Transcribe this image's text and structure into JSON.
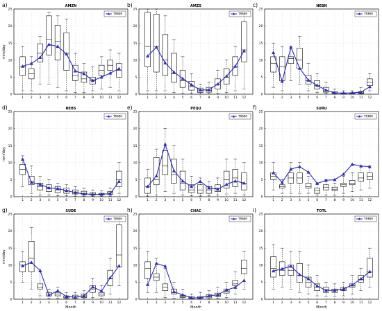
{
  "figure": {
    "x_label": "Month",
    "y_label": "mm/day",
    "legend_entry": "TRMM"
  },
  "colors": {
    "trmm": "#2b2bb8"
  },
  "chart_data": [
    {
      "panel": "a)",
      "title": "AMZN",
      "type": "box+line",
      "x": [
        1,
        2,
        3,
        4,
        5,
        6,
        7,
        8,
        9,
        10,
        11,
        12
      ],
      "ylim": [
        0,
        25
      ],
      "yticks": [
        0,
        5,
        10,
        15,
        20,
        25
      ],
      "trmm": [
        8.2,
        9.0,
        10.8,
        14.6,
        14.0,
        11.8,
        6.8,
        6.0,
        4.0,
        5.0,
        6.2,
        7.5
      ],
      "box": {
        "q1": [
          5.5,
          4.5,
          9.5,
          11.5,
          10.0,
          7.0,
          4.0,
          3.5,
          3.0,
          5.5,
          7.0,
          5.0
        ],
        "median": [
          8.0,
          6.0,
          12.0,
          16.0,
          15.5,
          12.0,
          5.5,
          4.5,
          4.0,
          7.0,
          8.5,
          7.0
        ],
        "q3": [
          11.0,
          7.5,
          14.8,
          23.0,
          20.2,
          18.0,
          8.5,
          6.5,
          5.0,
          8.5,
          10.0,
          9.0
        ],
        "whisker_low": [
          1.0,
          1.0,
          3.0,
          3.0,
          2.0,
          1.0,
          0.5,
          0.5,
          1.0,
          1.5,
          2.0,
          1.0
        ],
        "whisker_high": [
          14.0,
          11.0,
          17.0,
          24.0,
          23.0,
          22.0,
          12.0,
          9.0,
          8.0,
          11.0,
          13.0,
          12.0
        ]
      }
    },
    {
      "panel": "b)",
      "title": "AMZS",
      "type": "box+line",
      "x": [
        1,
        2,
        3,
        4,
        5,
        6,
        7,
        8,
        9,
        10,
        11,
        12
      ],
      "ylim": [
        0,
        25
      ],
      "yticks": [
        0,
        5,
        10,
        15,
        20,
        25
      ],
      "trmm": [
        11.2,
        13.8,
        9.2,
        6.5,
        4.6,
        2.8,
        1.2,
        1.3,
        3.0,
        5.3,
        8.2,
        12.7
      ],
      "box": {
        "q1": [
          8.0,
          6.5,
          5.5,
          3.5,
          2.0,
          1.2,
          0.5,
          0.6,
          1.5,
          3.0,
          5.5,
          9.5
        ],
        "median": [
          14.0,
          14.0,
          10.0,
          6.0,
          4.0,
          2.2,
          1.0,
          1.1,
          2.8,
          5.0,
          8.0,
          13.0
        ],
        "q3": [
          24.0,
          23.5,
          17.5,
          12.0,
          7.0,
          3.8,
          1.8,
          2.0,
          4.5,
          7.5,
          11.0,
          21.2
        ],
        "whisker_low": [
          1.0,
          1.0,
          1.0,
          0.5,
          0.3,
          0.2,
          0.1,
          0.1,
          0.3,
          0.5,
          1.0,
          1.5
        ],
        "whisker_high": [
          25.0,
          25.0,
          23.0,
          16.0,
          11.0,
          6.0,
          3.0,
          3.5,
          7.0,
          10.0,
          14.0,
          24.0
        ]
      }
    },
    {
      "panel": "c)",
      "title": "NEBN",
      "type": "box+line",
      "x": [
        1,
        2,
        3,
        4,
        5,
        6,
        7,
        8,
        9,
        10,
        11,
        12
      ],
      "ylim": [
        0,
        25
      ],
      "yticks": [
        0,
        5,
        10,
        15,
        20,
        25
      ],
      "trmm": [
        12.2,
        3.8,
        13.8,
        7.6,
        4.1,
        2.6,
        1.2,
        0.4,
        0.3,
        0.4,
        0.6,
        2.2
      ],
      "box": {
        "q1": [
          6.5,
          4.0,
          9.0,
          7.5,
          3.0,
          1.5,
          0.6,
          0.2,
          0.1,
          0.1,
          0.2,
          2.5
        ],
        "median": [
          9.0,
          8.0,
          10.5,
          10.0,
          4.0,
          2.5,
          1.0,
          0.4,
          0.2,
          0.2,
          0.4,
          3.5
        ],
        "q3": [
          11.0,
          11.0,
          11.0,
          13.5,
          5.5,
          4.0,
          2.0,
          0.7,
          0.4,
          0.4,
          0.8,
          4.5
        ],
        "whisker_low": [
          2.0,
          1.0,
          4.0,
          3.0,
          1.0,
          0.5,
          0.2,
          0.0,
          0.0,
          0.0,
          0.0,
          1.0
        ],
        "whisker_high": [
          15.0,
          14.0,
          14.0,
          17.0,
          9.0,
          6.0,
          3.5,
          1.5,
          1.0,
          1.0,
          2.0,
          6.0
        ]
      }
    },
    {
      "panel": "d)",
      "title": "NEBS",
      "type": "box+line",
      "x": [
        1,
        2,
        3,
        4,
        5,
        6,
        7,
        8,
        9,
        10,
        11,
        12
      ],
      "ylim": [
        0,
        25
      ],
      "yticks": [
        0,
        5,
        10,
        15,
        20,
        25
      ],
      "trmm": [
        11.0,
        4.2,
        3.6,
        2.6,
        2.4,
        1.8,
        1.2,
        0.8,
        0.7,
        0.7,
        0.9,
        4.5
      ],
      "box": {
        "q1": [
          6.5,
          3.5,
          2.0,
          1.5,
          1.2,
          1.0,
          0.8,
          0.6,
          0.5,
          0.5,
          0.7,
          3.0
        ],
        "median": [
          8.0,
          4.5,
          3.0,
          2.5,
          2.0,
          1.8,
          1.4,
          1.0,
          0.8,
          0.8,
          1.1,
          5.0
        ],
        "q3": [
          9.5,
          6.0,
          4.0,
          3.5,
          3.0,
          2.5,
          2.0,
          1.6,
          1.2,
          1.0,
          1.5,
          7.5
        ],
        "whisker_low": [
          3.0,
          1.0,
          0.5,
          0.5,
          0.3,
          0.3,
          0.2,
          0.1,
          0.1,
          0.1,
          0.2,
          1.0
        ],
        "whisker_high": [
          12.0,
          9.0,
          6.0,
          5.0,
          4.0,
          3.5,
          3.0,
          2.5,
          2.0,
          1.8,
          2.5,
          10.0
        ]
      }
    },
    {
      "panel": "e)",
      "title": "PEQU",
      "type": "box+line",
      "x": [
        1,
        2,
        3,
        4,
        5,
        6,
        7,
        8,
        9,
        10,
        11,
        12
      ],
      "ylim": [
        0,
        25
      ],
      "yticks": [
        0,
        5,
        10,
        15,
        20,
        25
      ],
      "trmm": [
        3.0,
        6.1,
        15.4,
        7.6,
        4.6,
        3.0,
        4.5,
        2.6,
        2.2,
        3.6,
        4.6,
        4.0
      ],
      "box": {
        "q1": [
          1.0,
          3.5,
          6.5,
          4.0,
          2.0,
          1.2,
          1.0,
          1.0,
          1.5,
          2.5,
          3.0,
          2.0
        ],
        "median": [
          3.0,
          5.0,
          9.0,
          6.5,
          4.0,
          2.0,
          2.0,
          2.0,
          2.5,
          5.0,
          5.5,
          4.0
        ],
        "q3": [
          5.5,
          11.5,
          13.5,
          11.0,
          7.5,
          3.5,
          3.5,
          3.0,
          3.5,
          7.5,
          8.0,
          7.0
        ],
        "whisker_low": [
          0.2,
          0.5,
          1.5,
          1.0,
          0.5,
          0.3,
          0.2,
          0.3,
          0.5,
          0.8,
          1.0,
          0.5
        ],
        "whisker_high": [
          8.0,
          14.0,
          20.0,
          15.0,
          11.0,
          6.0,
          5.5,
          4.5,
          5.5,
          11.0,
          11.0,
          10.0
        ]
      }
    },
    {
      "panel": "f)",
      "title": "SURU",
      "type": "box+line",
      "x": [
        1,
        2,
        3,
        4,
        5,
        6,
        7,
        8,
        9,
        10,
        11,
        12
      ],
      "ylim": [
        0,
        25
      ],
      "yticks": [
        0,
        5,
        10,
        15,
        20,
        25
      ],
      "trmm": [
        7.0,
        4.2,
        8.1,
        8.8,
        7.2,
        3.9,
        4.8,
        5.0,
        6.6,
        9.5,
        9.0,
        8.8
      ],
      "box": {
        "q1": [
          5.0,
          2.5,
          4.0,
          4.0,
          2.5,
          1.0,
          2.0,
          1.8,
          3.0,
          3.5,
          4.5,
          5.0
        ],
        "median": [
          6.0,
          3.0,
          5.5,
          5.5,
          3.0,
          1.8,
          2.8,
          2.2,
          3.5,
          4.0,
          5.5,
          6.0
        ],
        "q3": [
          7.0,
          3.5,
          7.0,
          7.0,
          4.0,
          2.5,
          3.5,
          2.8,
          4.0,
          4.8,
          7.0,
          7.0
        ],
        "whisker_low": [
          2.0,
          1.0,
          1.0,
          1.0,
          1.0,
          0.5,
          0.5,
          0.5,
          1.0,
          1.5,
          2.0,
          2.5
        ],
        "whisker_high": [
          10.0,
          5.0,
          10.0,
          10.0,
          6.0,
          4.0,
          5.0,
          4.0,
          6.0,
          7.0,
          9.0,
          9.0
        ]
      }
    },
    {
      "panel": "g)",
      "title": "SUDE",
      "type": "box+line",
      "x": [
        1,
        2,
        3,
        4,
        5,
        6,
        7,
        8,
        9,
        10,
        11,
        12
      ],
      "ylim": [
        0,
        25
      ],
      "yticks": [
        0,
        5,
        10,
        15,
        20,
        25
      ],
      "trmm": [
        9.8,
        10.8,
        8.4,
        1.2,
        2.5,
        0.8,
        0.6,
        1.0,
        3.6,
        2.4,
        6.3,
        9.8
      ],
      "box": {
        "q1": [
          8.0,
          8.0,
          3.0,
          1.0,
          1.0,
          0.3,
          0.3,
          0.5,
          2.0,
          1.0,
          4.0,
          9.5
        ],
        "median": [
          10.0,
          12.0,
          3.5,
          1.5,
          1.5,
          0.6,
          0.7,
          1.0,
          3.0,
          1.5,
          6.0,
          13.0
        ],
        "q3": [
          11.0,
          17.0,
          4.5,
          2.0,
          2.0,
          1.0,
          1.2,
          1.5,
          4.0,
          2.0,
          8.5,
          21.8
        ],
        "whisker_low": [
          5.0,
          3.0,
          1.0,
          0.2,
          0.2,
          0.0,
          0.0,
          0.1,
          0.5,
          0.3,
          1.5,
          4.0
        ],
        "whisker_high": [
          14.0,
          21.0,
          8.0,
          3.0,
          3.5,
          2.0,
          2.0,
          2.5,
          6.0,
          4.0,
          12.0,
          24.0
        ]
      }
    },
    {
      "panel": "h)",
      "title": "CHAC",
      "type": "box+line",
      "x": [
        1,
        2,
        3,
        4,
        5,
        6,
        7,
        8,
        9,
        10,
        11,
        12
      ],
      "ylim": [
        0,
        25
      ],
      "yticks": [
        0,
        5,
        10,
        15,
        20,
        25
      ],
      "trmm": [
        4.3,
        10.5,
        9.7,
        2.2,
        1.3,
        0.4,
        0.4,
        1.0,
        1.3,
        2.7,
        3.5,
        5.5
      ],
      "box": {
        "q1": [
          6.0,
          5.5,
          2.5,
          1.5,
          0.5,
          0.2,
          0.2,
          0.4,
          0.8,
          1.8,
          4.0,
          7.5
        ],
        "median": [
          9.0,
          6.5,
          3.5,
          2.0,
          0.8,
          0.4,
          0.5,
          0.8,
          1.2,
          2.3,
          4.5,
          9.0
        ],
        "q3": [
          11.0,
          7.5,
          4.5,
          3.0,
          1.2,
          0.8,
          0.8,
          1.3,
          1.8,
          3.0,
          5.5,
          11.5
        ],
        "whisker_low": [
          2.0,
          2.0,
          0.5,
          0.3,
          0.0,
          0.0,
          0.0,
          0.0,
          0.2,
          0.5,
          1.5,
          3.0
        ],
        "whisker_high": [
          14.0,
          12.0,
          9.0,
          5.0,
          3.0,
          1.5,
          2.0,
          2.5,
          3.5,
          5.0,
          8.0,
          14.0
        ]
      }
    },
    {
      "panel": "i)",
      "title": "TOTL",
      "type": "box+line",
      "x": [
        1,
        2,
        3,
        4,
        5,
        6,
        7,
        8,
        9,
        10,
        11,
        12
      ],
      "ylim": [
        0,
        25
      ],
      "yticks": [
        0,
        5,
        10,
        15,
        20,
        25
      ],
      "trmm": [
        8.3,
        8.9,
        9.7,
        7.2,
        6.0,
        3.9,
        2.6,
        2.6,
        3.0,
        4.2,
        6.0,
        8.1
      ],
      "box": {
        "q1": [
          6.5,
          7.0,
          7.0,
          5.0,
          3.5,
          2.5,
          2.0,
          2.0,
          2.5,
          3.5,
          5.0,
          6.5
        ],
        "median": [
          9.0,
          8.5,
          8.5,
          7.0,
          5.0,
          3.5,
          2.8,
          2.6,
          3.0,
          4.0,
          5.8,
          8.0
        ],
        "q3": [
          12.5,
          11.0,
          10.0,
          10.5,
          6.5,
          4.5,
          3.5,
          3.0,
          3.5,
          4.5,
          7.0,
          12.0
        ],
        "whisker_low": [
          3.0,
          3.5,
          3.0,
          2.0,
          1.5,
          1.0,
          0.8,
          0.8,
          1.0,
          1.5,
          2.5,
          3.5
        ],
        "whisker_high": [
          16.0,
          15.0,
          14.0,
          14.0,
          10.0,
          7.0,
          5.0,
          4.5,
          5.0,
          7.0,
          9.0,
          15.0
        ]
      }
    }
  ]
}
